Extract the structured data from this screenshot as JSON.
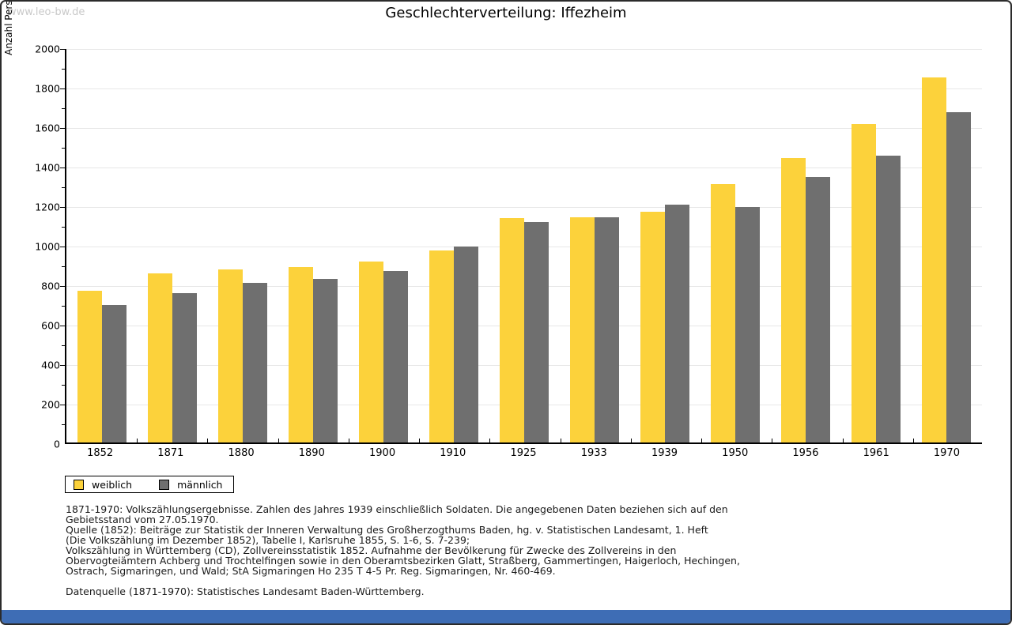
{
  "watermark": "www.leo-bw.de",
  "title": "Geschlechterverteilung: Iffezheim",
  "chart_data": {
    "type": "bar",
    "title": "Geschlechterverteilung: Iffezheim",
    "xlabel": "",
    "ylabel": "Anzahl Personen",
    "ylim": [
      0,
      2000
    ],
    "ytick_major_step": 200,
    "ytick_minor_step": 100,
    "grid": true,
    "legend_position": "bottom-left",
    "categories": [
      "1852",
      "1871",
      "1880",
      "1890",
      "1900",
      "1910",
      "1925",
      "1933",
      "1939",
      "1950",
      "1956",
      "1961",
      "1970"
    ],
    "series": [
      {
        "name": "weiblich",
        "color": "#FCD23B",
        "values": [
          770,
          855,
          878,
          890,
          915,
          972,
          1138,
          1142,
          1170,
          1309,
          1440,
          1613,
          1848
        ]
      },
      {
        "name": "männlich",
        "color": "#6F6F6F",
        "values": [
          695,
          755,
          810,
          828,
          870,
          993,
          1115,
          1139,
          1206,
          1193,
          1346,
          1453,
          1672
        ]
      }
    ]
  },
  "footnotes": {
    "lines": [
      "1871-1970: Volkszählungsergebnisse. Zahlen des Jahres 1939 einschließlich Soldaten. Die angegebenen Daten beziehen sich auf den",
      "Gebietsstand vom 27.05.1970.",
      "Quelle (1852): Beiträge zur Statistik der Inneren Verwaltung des Großherzogthums Baden, hg. v. Statistischen Landesamt, 1. Heft",
      "(Die Volkszählung im Dezember 1852), Tabelle I, Karlsruhe 1855, S. 1-6, S. 7-239;",
      "Volkszählung in Württemberg (CD), Zollvereinsstatistik 1852. Aufnahme der Bevölkerung für Zwecke des Zollvereins in den",
      "Obervogteiämtern Achberg und Trochtelfingen sowie in den Oberamtsbezirken Glatt, Straßberg, Gammertingen, Haigerloch, Hechingen,",
      "Ostrach, Sigmaringen, und Wald; StA Sigmaringen Ho 235 T 4-5 Pr. Reg. Sigmaringen, Nr. 460-469."
    ],
    "datasource": "Datenquelle (1871-1970): Statistisches Landesamt Baden-Württemberg."
  },
  "colors": {
    "female_bar": "#FCD23B",
    "male_bar": "#6F6F6F",
    "gridline": "#E7E7E7",
    "axis": "#000000",
    "watermark": "#C9C9C9",
    "bottom_bar": "#3E6DB5",
    "page_border": "#2B2B2B"
  }
}
